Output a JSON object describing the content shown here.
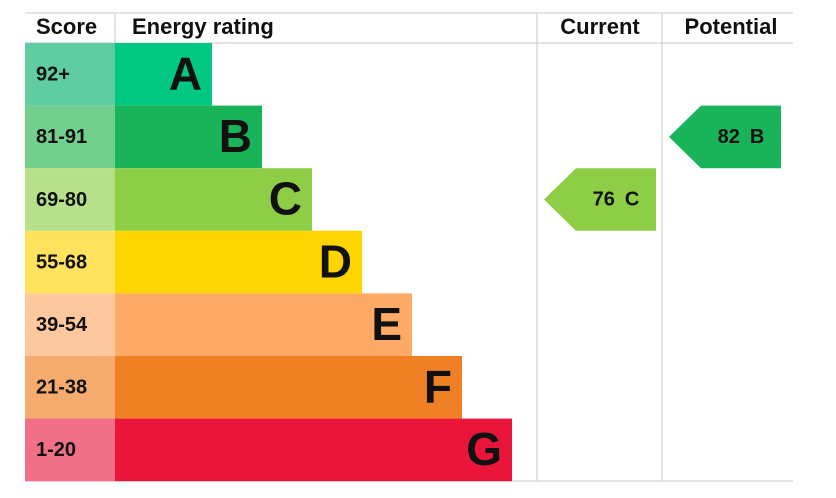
{
  "header": {
    "score": "Score",
    "rating": "Energy rating",
    "current": "Current",
    "potential": "Potential"
  },
  "bands": [
    {
      "score": "92+",
      "letter": "A",
      "color": "#00c781",
      "light": "#5fcca2"
    },
    {
      "score": "81-91",
      "letter": "B",
      "color": "#19b459",
      "light": "#72cf8e"
    },
    {
      "score": "69-80",
      "letter": "C",
      "color": "#8dce46",
      "light": "#b6e08a"
    },
    {
      "score": "55-68",
      "letter": "D",
      "color": "#ffd500",
      "light": "#ffe35e"
    },
    {
      "score": "39-54",
      "letter": "E",
      "color": "#fcaa65",
      "light": "#fdc89d"
    },
    {
      "score": "21-38",
      "letter": "F",
      "color": "#ef8023",
      "light": "#f4ab6d"
    },
    {
      "score": "1-20",
      "letter": "G",
      "color": "#e9153b",
      "light": "#f07088"
    }
  ],
  "current": {
    "score": "76",
    "rating": "C"
  },
  "potential": {
    "score": "82",
    "rating": "B"
  }
}
